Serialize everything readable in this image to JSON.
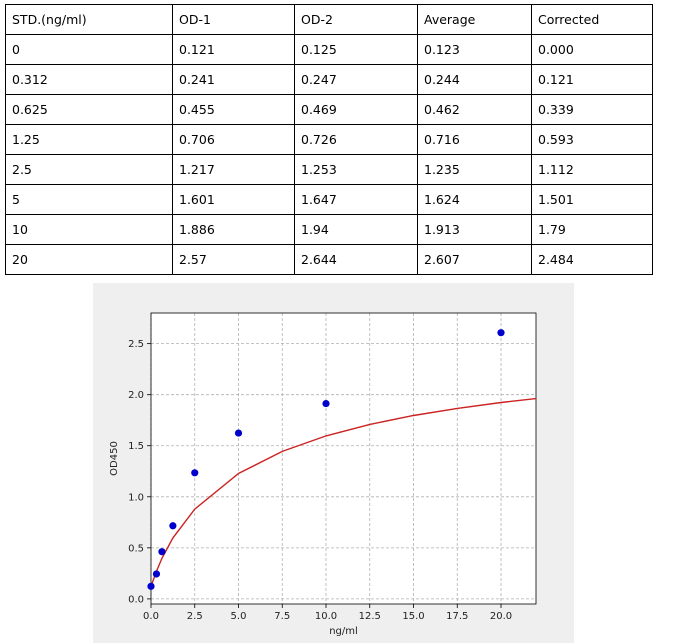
{
  "table": {
    "headers": [
      "STD.(ng/ml)",
      "OD-1",
      "OD-2",
      "Average",
      "Corrected"
    ],
    "rows": [
      [
        "0",
        "0.121",
        "0.125",
        "0.123",
        "0.000"
      ],
      [
        "0.312",
        "0.241",
        "0.247",
        "0.244",
        "0.121"
      ],
      [
        "0.625",
        "0.455",
        "0.469",
        "0.462",
        "0.339"
      ],
      [
        "1.25",
        "0.706",
        "0.726",
        "0.716",
        "0.593"
      ],
      [
        "2.5",
        "1.217",
        "1.253",
        "1.235",
        "1.112"
      ],
      [
        "5",
        "1.601",
        "1.647",
        "1.624",
        "1.501"
      ],
      [
        "10",
        "1.886",
        "1.94",
        "1.913",
        "1.79"
      ],
      [
        "20",
        "2.57",
        "2.644",
        "2.607",
        "2.484"
      ]
    ]
  },
  "chart_data": {
    "type": "scatter",
    "xlabel": "ng/ml",
    "ylabel": "OD450",
    "xlim": [
      0,
      22
    ],
    "ylim": [
      -0.05,
      2.8
    ],
    "x_ticks": [
      "0.0",
      "2.5",
      "5.0",
      "7.5",
      "10.0",
      "12.5",
      "15.0",
      "17.5",
      "20.0"
    ],
    "y_ticks": [
      "0.0",
      "0.5",
      "1.0",
      "1.5",
      "2.0",
      "2.5"
    ],
    "grid": true,
    "series": [
      {
        "points": [
          [
            0,
            0.123
          ],
          [
            0.312,
            0.244
          ],
          [
            0.625,
            0.462
          ],
          [
            1.25,
            0.716
          ],
          [
            2.5,
            1.235
          ],
          [
            5,
            1.624
          ],
          [
            10,
            1.913
          ],
          [
            20,
            2.607
          ]
        ],
        "color": "#0000cc"
      }
    ],
    "fit_curve": {
      "color": "#cc2222",
      "points": [
        [
          0,
          0.123
        ],
        [
          0.312,
          0.271
        ],
        [
          0.625,
          0.397
        ],
        [
          1.25,
          0.597
        ],
        [
          2.5,
          0.879
        ],
        [
          5,
          1.228
        ],
        [
          7.5,
          1.445
        ],
        [
          10,
          1.596
        ],
        [
          12.5,
          1.709
        ],
        [
          15,
          1.796
        ],
        [
          17.5,
          1.866
        ],
        [
          20,
          1.923
        ],
        [
          22,
          1.962
        ]
      ]
    }
  }
}
